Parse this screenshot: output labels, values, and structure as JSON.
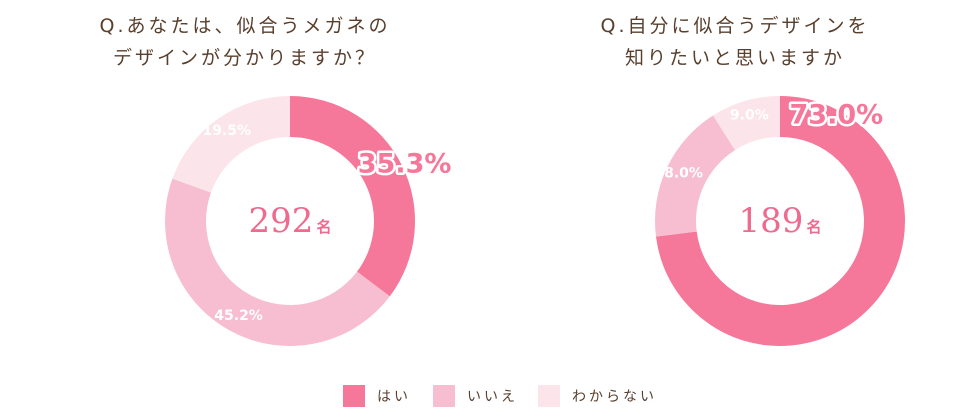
{
  "colors": {
    "yes": "#f5789a",
    "no": "#f7bdd1",
    "unknown": "#fbe4ea",
    "total_text": "#ee6a8e",
    "title_text": "#5a3f2d"
  },
  "chart_data": [
    {
      "type": "pie",
      "title": "Q.あなたは、似合うメガネの\nデザインが分かりますか？",
      "categories": [
        "はい",
        "いいえ",
        "わからない"
      ],
      "values": [
        35.3,
        45.2,
        19.5
      ],
      "value_labels": [
        "35.3%",
        "45.2%",
        "19.5%"
      ],
      "total": "292",
      "total_unit": "名"
    },
    {
      "type": "pie",
      "title": "Q.自分に似合うデザインを\n知りたいと思いますか",
      "categories": [
        "はい",
        "いいえ",
        "わからない"
      ],
      "values": [
        73.0,
        18.0,
        9.0
      ],
      "value_labels": [
        "73.0%",
        "18.0%",
        "9.0%"
      ],
      "total": "189",
      "total_unit": "名"
    }
  ],
  "legend": [
    {
      "label": "はい",
      "color": "#f5789a"
    },
    {
      "label": "いいえ",
      "color": "#f7bdd1"
    },
    {
      "label": "わからない",
      "color": "#fbe4ea"
    }
  ]
}
